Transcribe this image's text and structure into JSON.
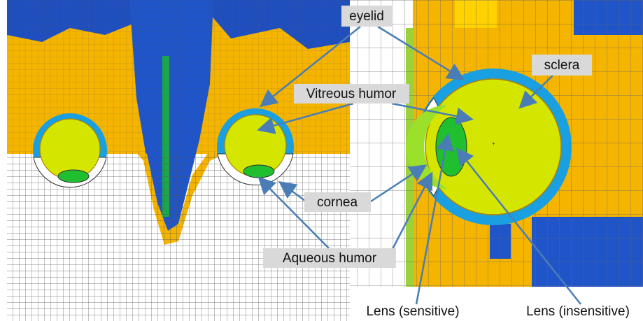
{
  "labels": {
    "eyelid": "eyelid",
    "vitreous": "Vitreous humor",
    "sclera": "sclera",
    "cornea": "cornea",
    "aqueous": "Aqueous humor",
    "lens_sensitive": "Lens (sensitive)",
    "lens_insensitive": "Lens (insensitive)"
  }
}
